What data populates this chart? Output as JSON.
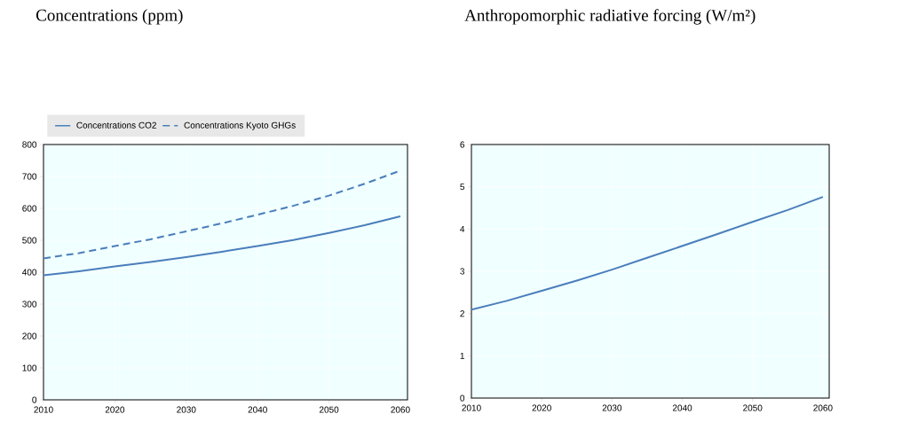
{
  "chart_data": [
    {
      "type": "line",
      "title": "Concentrations (ppm)",
      "x": [
        2010,
        2015,
        2020,
        2025,
        2030,
        2035,
        2040,
        2045,
        2050,
        2055,
        2060
      ],
      "series": [
        {
          "name": "Concentrations CO2",
          "color": "#4a7ebb",
          "line_style": "solid",
          "values": [
            390,
            403,
            418,
            432,
            447,
            464,
            482,
            501,
            523,
            547,
            575
          ]
        },
        {
          "name": "Concentrations Kyoto GHGs",
          "color": "#4a7ebb",
          "line_style": "dashed",
          "values": [
            443,
            460,
            482,
            503,
            528,
            553,
            580,
            608,
            640,
            677,
            718
          ]
        }
      ],
      "xlim": [
        2010,
        2061
      ],
      "xticks": [
        2010,
        2020,
        2030,
        2040,
        2050,
        2060
      ],
      "ylim": [
        0,
        800
      ],
      "yticks": [
        0,
        100,
        200,
        300,
        400,
        500,
        600,
        700,
        800
      ],
      "grid": true,
      "legend": "top",
      "marker": "none"
    },
    {
      "type": "line",
      "title": "Anthropomorphic radiative forcing (W/m²)",
      "x": [
        2010,
        2015,
        2020,
        2025,
        2030,
        2035,
        2040,
        2045,
        2050,
        2055,
        2060
      ],
      "series": [
        {
          "color": "#4a7ebb",
          "line_style": "solid",
          "values": [
            2.09,
            2.3,
            2.54,
            2.78,
            3.04,
            3.32,
            3.6,
            3.88,
            4.17,
            4.45,
            4.76
          ]
        }
      ],
      "xlim": [
        2010,
        2060.9
      ],
      "xticks": [
        2010,
        2020,
        2030,
        2040,
        2050,
        2060
      ],
      "ylim": [
        0,
        6
      ],
      "yticks": [
        0,
        1,
        2,
        3,
        4,
        5,
        6
      ],
      "grid": true,
      "legend": false,
      "marker": "none"
    }
  ]
}
